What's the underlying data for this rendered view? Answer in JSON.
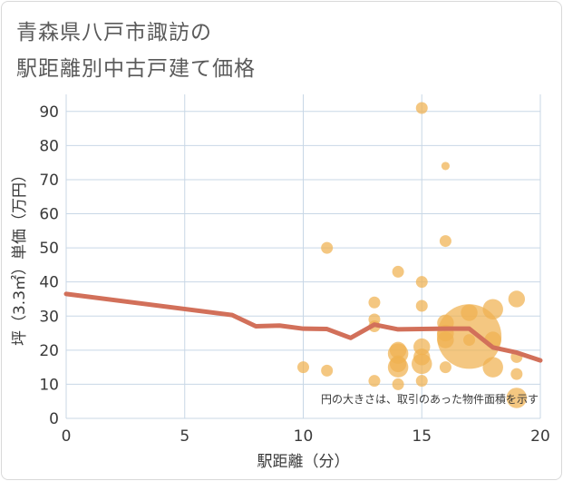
{
  "title_line1": "青森県八戸市諏訪の",
  "title_line2": "駅距離別中古戸建て価格",
  "chart_data": {
    "type": "scatter",
    "xlabel": "駅距離（分）",
    "ylabel": "坪（3.3㎡）単価（万円）",
    "xlim": [
      0,
      20
    ],
    "ylim": [
      0,
      95
    ],
    "xticks": [
      "0",
      "5",
      "10",
      "15",
      "20"
    ],
    "yticks": [
      "0",
      "10",
      "20",
      "30",
      "40",
      "50",
      "60",
      "70",
      "80",
      "90"
    ],
    "grid": true,
    "note": "円の大きさは、取引のあった物件面積を示す",
    "colors": {
      "bubble": "#f0b250",
      "line": "#d2705a",
      "grid": "#c8d7e6"
    },
    "bubbles": [
      {
        "x": 10,
        "y": 15,
        "s": 1
      },
      {
        "x": 11,
        "y": 50,
        "s": 1
      },
      {
        "x": 11,
        "y": 14,
        "s": 1
      },
      {
        "x": 13,
        "y": 34,
        "s": 1
      },
      {
        "x": 13,
        "y": 29,
        "s": 1
      },
      {
        "x": 13,
        "y": 27,
        "s": 1
      },
      {
        "x": 13,
        "y": 11,
        "s": 1
      },
      {
        "x": 14,
        "y": 43,
        "s": 1
      },
      {
        "x": 14,
        "y": 20,
        "s": 2
      },
      {
        "x": 14,
        "y": 19,
        "s": 3
      },
      {
        "x": 14,
        "y": 16,
        "s": 2
      },
      {
        "x": 14,
        "y": 15,
        "s": 3
      },
      {
        "x": 14,
        "y": 10,
        "s": 1
      },
      {
        "x": 15,
        "y": 91,
        "s": 1
      },
      {
        "x": 15,
        "y": 40,
        "s": 1
      },
      {
        "x": 15,
        "y": 33,
        "s": 1
      },
      {
        "x": 15,
        "y": 21,
        "s": 2
      },
      {
        "x": 15,
        "y": 18,
        "s": 2
      },
      {
        "x": 15,
        "y": 16,
        "s": 3
      },
      {
        "x": 15,
        "y": 11,
        "s": 1
      },
      {
        "x": 16,
        "y": 74,
        "s": 0.5
      },
      {
        "x": 16,
        "y": 52,
        "s": 1
      },
      {
        "x": 16,
        "y": 28,
        "s": 2
      },
      {
        "x": 16,
        "y": 25,
        "s": 2
      },
      {
        "x": 16,
        "y": 23,
        "s": 2
      },
      {
        "x": 16,
        "y": 15,
        "s": 1
      },
      {
        "x": 17,
        "y": 24,
        "s": 30
      },
      {
        "x": 17,
        "y": 31,
        "s": 2
      },
      {
        "x": 17,
        "y": 23,
        "s": 1
      },
      {
        "x": 18,
        "y": 32,
        "s": 3
      },
      {
        "x": 18,
        "y": 23,
        "s": 2
      },
      {
        "x": 18,
        "y": 15,
        "s": 3
      },
      {
        "x": 19,
        "y": 35,
        "s": 2
      },
      {
        "x": 19,
        "y": 18,
        "s": 1
      },
      {
        "x": 19,
        "y": 13,
        "s": 1
      },
      {
        "x": 19,
        "y": 6,
        "s": 3
      }
    ],
    "trend": {
      "x": [
        0,
        7,
        8,
        9,
        10,
        11,
        12,
        13,
        14,
        15,
        16,
        17,
        18,
        19,
        20
      ],
      "y": [
        36.5,
        30.3,
        27.0,
        27.2,
        26.3,
        26.2,
        23.6,
        27.5,
        26.1,
        26.2,
        26.3,
        26.3,
        20.8,
        19.3,
        17.0
      ]
    }
  }
}
